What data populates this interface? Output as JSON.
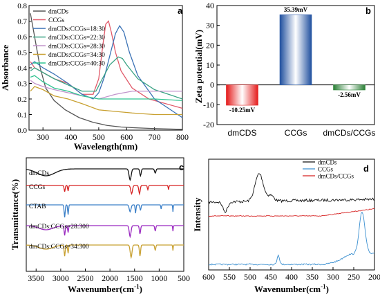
{
  "chart_data": [
    {
      "panel": "a",
      "type": "line",
      "xlabel": "Wavelength(nm)",
      "ylabel": "Absorbance",
      "xlim": [
        250,
        800
      ],
      "ylim": [
        0,
        0.8
      ],
      "x_ticks": [
        "300",
        "400",
        "500",
        "600",
        "700",
        "800"
      ],
      "y_ticks": [
        "0.0",
        "0.1",
        "0.2",
        "0.3",
        "0.4",
        "0.5",
        "0.6",
        "0.7",
        "0.8"
      ],
      "series": [
        {
          "name": "dmCDs",
          "color": "#555555",
          "x": [
            255,
            270,
            290,
            310,
            340,
            380,
            430,
            480,
            530,
            580,
            630,
            700,
            800
          ],
          "y": [
            0.75,
            0.6,
            0.4,
            0.27,
            0.19,
            0.13,
            0.08,
            0.05,
            0.03,
            0.02,
            0.015,
            0.01,
            0.005
          ]
        },
        {
          "name": "CCGs",
          "color": "#e05a6a",
          "x": [
            255,
            270,
            300,
            340,
            390,
            440,
            480,
            500,
            515,
            525,
            535,
            545,
            560,
            580,
            620,
            680,
            800
          ],
          "y": [
            0.44,
            0.4,
            0.37,
            0.33,
            0.3,
            0.23,
            0.23,
            0.33,
            0.55,
            0.68,
            0.7,
            0.63,
            0.5,
            0.38,
            0.27,
            0.2,
            0.14
          ]
        },
        {
          "name": "dmCDs:CCGs=18:30",
          "color": "#3b72b5",
          "x": [
            255,
            270,
            300,
            340,
            390,
            440,
            480,
            500,
            520,
            540,
            560,
            575,
            590,
            610,
            640,
            700,
            800
          ],
          "y": [
            0.42,
            0.44,
            0.4,
            0.36,
            0.3,
            0.23,
            0.2,
            0.24,
            0.34,
            0.48,
            0.62,
            0.67,
            0.63,
            0.5,
            0.35,
            0.2,
            0.08
          ]
        },
        {
          "name": "dmCDs:CCGs=22:30",
          "color": "#3aa384",
          "x": [
            255,
            270,
            300,
            340,
            390,
            440,
            490,
            510,
            540,
            570,
            585,
            600,
            640,
            700,
            800
          ],
          "y": [
            0.38,
            0.4,
            0.37,
            0.33,
            0.29,
            0.25,
            0.25,
            0.32,
            0.42,
            0.47,
            0.46,
            0.42,
            0.33,
            0.26,
            0.2
          ]
        },
        {
          "name": "dmCDs:CCGs=28:30",
          "color": "#c294cc",
          "x": [
            255,
            270,
            300,
            340,
            390,
            440,
            500,
            560,
            620,
            700,
            800
          ],
          "y": [
            0.32,
            0.3,
            0.28,
            0.26,
            0.24,
            0.22,
            0.2,
            0.23,
            0.25,
            0.25,
            0.25
          ]
        },
        {
          "name": "dmCDs:CCGs=34:30",
          "color": "#c8a030",
          "x": [
            255,
            270,
            300,
            340,
            390,
            440,
            500,
            560,
            620,
            700,
            800
          ],
          "y": [
            0.25,
            0.28,
            0.26,
            0.22,
            0.2,
            0.17,
            0.13,
            0.12,
            0.11,
            0.1,
            0.1
          ]
        },
        {
          "name": "dmCDs:CCGs=40:30",
          "color": "#2fc490",
          "x": [
            255,
            270,
            300,
            340,
            390,
            440,
            500,
            560,
            620,
            700,
            800
          ],
          "y": [
            0.34,
            0.35,
            0.31,
            0.27,
            0.25,
            0.22,
            0.2,
            0.2,
            0.2,
            0.2,
            0.19
          ]
        }
      ]
    },
    {
      "panel": "b",
      "type": "bar",
      "ylabel": "Zeta potential(mV)",
      "ylim": [
        -20,
        40
      ],
      "y_ticks": [
        "-20",
        "-10",
        "0",
        "10",
        "20",
        "30",
        "40"
      ],
      "categories": [
        "dmCDS",
        "CCGs",
        "dmCDs/CCGs"
      ],
      "values": [
        -10.25,
        35.39,
        -2.56
      ],
      "value_labels": [
        "-10.25mV",
        "35.39mV",
        "-2.56mV"
      ],
      "colors": [
        "#e02020",
        "#2a5aa8",
        "#2e8a3a"
      ]
    },
    {
      "panel": "c",
      "type": "line",
      "xlabel": "Wavenumber(cm",
      "xlabel_sup": "-1",
      "xlabel_end": ")",
      "ylabel": "Transmittance(%)",
      "xlim": [
        3700,
        500
      ],
      "x_ticks": [
        "3500",
        "3000",
        "2500",
        "2000",
        "1500",
        "1000",
        "500"
      ],
      "series": [
        {
          "name": "dmCDs",
          "color": "#111111"
        },
        {
          "name": "CCGs",
          "color": "#d62020"
        },
        {
          "name": "CTAB",
          "color": "#3a7fc8"
        },
        {
          "name": "dmCDs:CCGs=28:300",
          "color": "#9a28c0"
        },
        {
          "name": "dmCDs:CCGs=34:300",
          "color": "#c8a030"
        }
      ]
    },
    {
      "panel": "d",
      "type": "line",
      "xlabel": "Wavenumber(cm",
      "xlabel_sup": "-1",
      "xlabel_end": ")",
      "ylabel": "Intensity",
      "xlim": [
        600,
        200
      ],
      "x_ticks": [
        "600",
        "550",
        "500",
        "450",
        "400",
        "350",
        "300",
        "250",
        "200"
      ],
      "series": [
        {
          "name": "dmCDs",
          "color": "#111111"
        },
        {
          "name": "CCGs",
          "color": "#3a8fd0"
        },
        {
          "name": "dmCDs/CCGs",
          "color": "#d62020"
        }
      ]
    }
  ]
}
